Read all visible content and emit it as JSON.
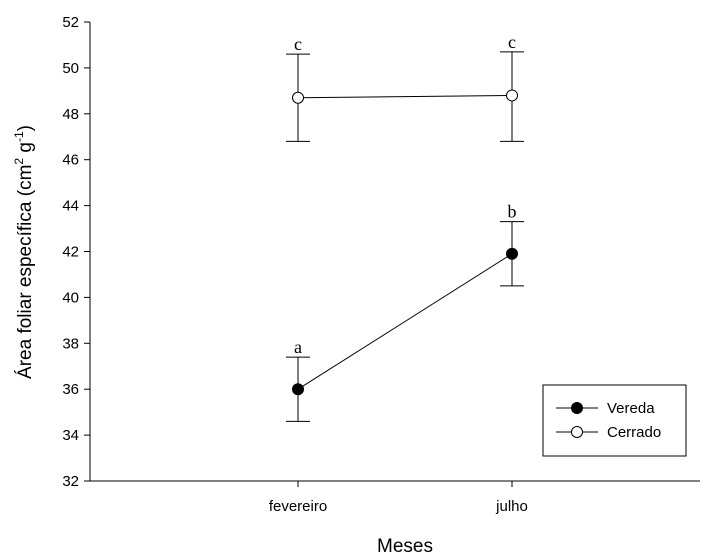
{
  "chart_data": {
    "type": "line",
    "categories": [
      "fevereiro",
      "julho"
    ],
    "xlabel": "Meses",
    "ylabel": {
      "main": "Área foliar específica (cm",
      "sup1": "2",
      "mid": " g",
      "sup2": "-1",
      "end": ")"
    },
    "ylim": [
      32,
      52
    ],
    "yticks": [
      32,
      34,
      36,
      38,
      40,
      42,
      44,
      46,
      48,
      50,
      52
    ],
    "grid": false,
    "legend_position": "bottom-right",
    "series": [
      {
        "name": "Vereda",
        "marker": "filled-circle",
        "color": "#000000",
        "values": [
          36.0,
          41.9
        ],
        "err_low": [
          34.6,
          40.5
        ],
        "err_high": [
          37.4,
          43.3
        ],
        "labels": [
          "a",
          "b"
        ]
      },
      {
        "name": "Cerrado",
        "marker": "open-circle",
        "color": "#000000",
        "values": [
          48.7,
          48.8
        ],
        "err_low": [
          46.8,
          46.8
        ],
        "err_high": [
          50.6,
          50.7
        ],
        "labels": [
          "c",
          "c"
        ]
      }
    ]
  }
}
